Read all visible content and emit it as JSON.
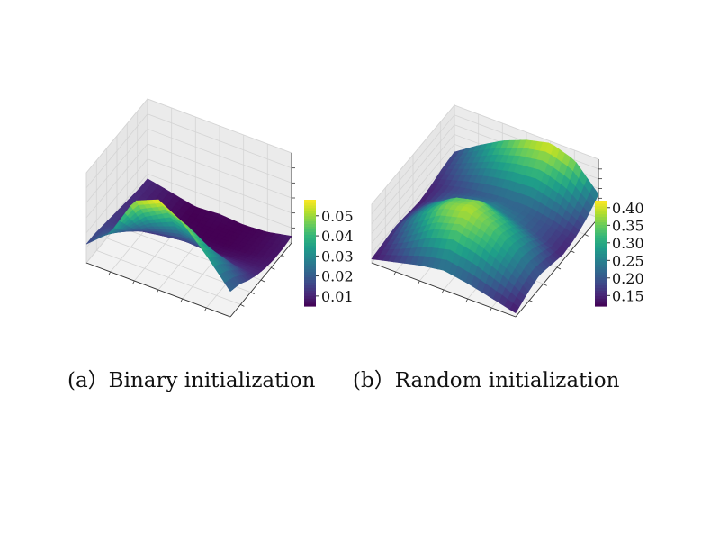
{
  "chart_data": [
    {
      "type": "surface3d",
      "title": "",
      "xlabel": "",
      "ylabel": "",
      "zlabel": "",
      "colormap": "viridis",
      "colorbar": {
        "ticks": [
          "0.01",
          "0.02",
          "0.03",
          "0.04",
          "0.05"
        ],
        "range": [
          0.005,
          0.058
        ]
      },
      "grid": true,
      "z_grid": [
        [
          0.016,
          0.016,
          0.015,
          0.014,
          0.013,
          0.012,
          0.011,
          0.011
        ],
        [
          0.028,
          0.022,
          0.016,
          0.011,
          0.009,
          0.008,
          0.008,
          0.008
        ],
        [
          0.052,
          0.037,
          0.024,
          0.013,
          0.008,
          0.006,
          0.005,
          0.005
        ],
        [
          0.058,
          0.045,
          0.029,
          0.015,
          0.007,
          0.005,
          0.005,
          0.006
        ],
        [
          0.05,
          0.04,
          0.026,
          0.014,
          0.007,
          0.005,
          0.005,
          0.005
        ],
        [
          0.036,
          0.03,
          0.022,
          0.012,
          0.008,
          0.006,
          0.006,
          0.006
        ],
        [
          0.02,
          0.018,
          0.014,
          0.011,
          0.009,
          0.008,
          0.008,
          0.009
        ]
      ]
    },
    {
      "type": "surface3d",
      "title": "",
      "xlabel": "",
      "ylabel": "",
      "zlabel": "",
      "colormap": "viridis",
      "colorbar": {
        "ticks": [
          "0.15",
          "0.20",
          "0.25",
          "0.30",
          "0.35",
          "0.40"
        ],
        "range": [
          0.12,
          0.42
        ]
      },
      "grid": true,
      "z_grid": [
        [
          0.14,
          0.15,
          0.16,
          0.15,
          0.14,
          0.15,
          0.17,
          0.18
        ],
        [
          0.17,
          0.22,
          0.27,
          0.25,
          0.2,
          0.18,
          0.22,
          0.26
        ],
        [
          0.2,
          0.3,
          0.36,
          0.33,
          0.24,
          0.2,
          0.27,
          0.33
        ],
        [
          0.22,
          0.34,
          0.39,
          0.36,
          0.26,
          0.21,
          0.3,
          0.38
        ],
        [
          0.2,
          0.31,
          0.35,
          0.31,
          0.23,
          0.21,
          0.31,
          0.41
        ],
        [
          0.17,
          0.25,
          0.28,
          0.25,
          0.19,
          0.19,
          0.27,
          0.37
        ],
        [
          0.14,
          0.17,
          0.19,
          0.17,
          0.15,
          0.16,
          0.19,
          0.24
        ]
      ]
    }
  ],
  "captions": {
    "a": "(a）Binary initialization",
    "b": "(b）Random initialization"
  }
}
